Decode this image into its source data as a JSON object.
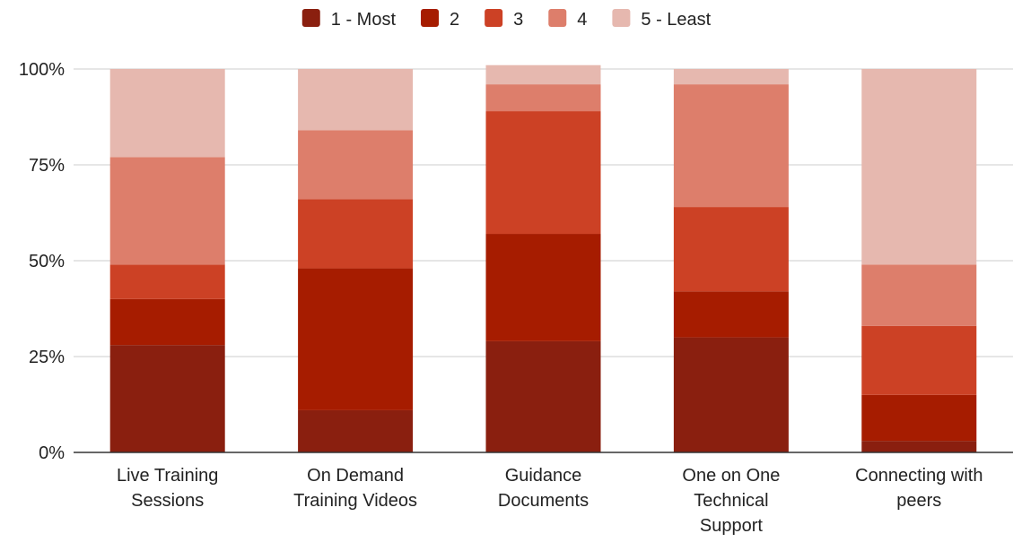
{
  "chart_data": {
    "type": "bar",
    "stacked": true,
    "percent_stacked": true,
    "title": "",
    "xlabel": "",
    "ylabel": "",
    "ylim": [
      0,
      100
    ],
    "y_ticks": [
      "0%",
      "25%",
      "50%",
      "75%",
      "100%"
    ],
    "y_tick_values": [
      0,
      25,
      50,
      75,
      100
    ],
    "grid": true,
    "legend_position": "top",
    "categories": [
      [
        "Live Training",
        "Sessions"
      ],
      [
        "On Demand",
        "Training Videos"
      ],
      [
        "Guidance",
        "Documents"
      ],
      [
        "One on One",
        "Technical",
        "Support"
      ],
      [
        "Connecting with",
        "peers"
      ]
    ],
    "series": [
      {
        "name": "1 - Most",
        "color": "#8a1f0f",
        "values": [
          28,
          11,
          29,
          30,
          3
        ]
      },
      {
        "name": "2",
        "color": "#a61c00",
        "values": [
          12,
          37,
          28,
          12,
          12
        ]
      },
      {
        "name": "3",
        "color": "#cc4125",
        "values": [
          9,
          18,
          32,
          22,
          18
        ]
      },
      {
        "name": "4",
        "color": "#dd7e6b",
        "values": [
          28,
          18,
          7,
          32,
          16
        ]
      },
      {
        "name": "5 - Least",
        "color": "#e6b8af",
        "values": [
          23,
          16,
          5,
          4,
          51
        ]
      }
    ]
  }
}
